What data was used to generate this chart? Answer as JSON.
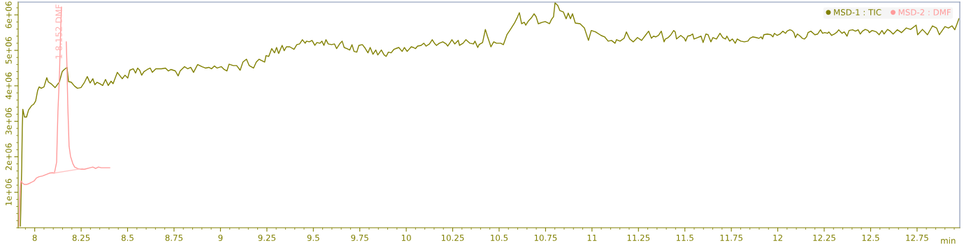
{
  "chart_data": {
    "type": "line",
    "xlabel": "min",
    "legend": "top right",
    "marker": "none",
    "line_style": "solid",
    "grid": false,
    "xlim": [
      7.911,
      12.98
    ],
    "ylim": [
      0,
      6360000.0
    ],
    "xticks": [
      8,
      8.25,
      8.5,
      8.75,
      9,
      9.25,
      9.5,
      9.75,
      10,
      10.25,
      10.5,
      10.75,
      11,
      11.25,
      11.5,
      11.75,
      12,
      12.25,
      12.5,
      12.75
    ],
    "yticks": [
      {
        "value": 1000000.0,
        "label": "1e+06"
      },
      {
        "value": 2000000.0,
        "label": "2e+06"
      },
      {
        "value": 3000000.0,
        "label": "3e+06"
      },
      {
        "value": 4000000.0,
        "label": "4e+06"
      },
      {
        "value": 5000000.0,
        "label": "5e+06"
      },
      {
        "value": 6000000.0,
        "label": "6e+06"
      }
    ],
    "annotations": [
      "1 8.152 DMF"
    ],
    "series": [
      {
        "name": "MSD-1 : TIC",
        "color": "#808000",
        "x": [
          7.923,
          7.93,
          7.933,
          7.936,
          7.945,
          7.956,
          7.967,
          7.983,
          7.994,
          8.005,
          8.016,
          8.024,
          8.035,
          8.05,
          8.065,
          8.073,
          8.088,
          8.11,
          8.133,
          8.148,
          8.159,
          8.174,
          8.182,
          8.197,
          8.215,
          8.23,
          8.249,
          8.268,
          8.283,
          8.298,
          8.313,
          8.324,
          8.336,
          8.351,
          8.366,
          8.381,
          8.396,
          8.411,
          8.422,
          8.445,
          8.471,
          8.486,
          8.501,
          8.512,
          8.531,
          8.543,
          8.554,
          8.565,
          8.576,
          8.588,
          8.606,
          8.622,
          8.633,
          8.652,
          8.682,
          8.704,
          8.719,
          8.734,
          8.757,
          8.772,
          8.783,
          8.806,
          8.824,
          8.84,
          8.855,
          8.877,
          8.9,
          8.919,
          8.937,
          8.952,
          8.967,
          8.982,
          9.005,
          9.02,
          9.035,
          9.046,
          9.069,
          9.087,
          9.106,
          9.121,
          9.14,
          9.155,
          9.178,
          9.193,
          9.208,
          9.223,
          9.238,
          9.245,
          9.26,
          9.276,
          9.291,
          9.302,
          9.313,
          9.332,
          9.343,
          9.355,
          9.373,
          9.396,
          9.411,
          9.426,
          9.441,
          9.456,
          9.463,
          9.478,
          9.493,
          9.508,
          9.519,
          9.535,
          9.546,
          9.557,
          9.568,
          9.58,
          9.598,
          9.614,
          9.625,
          9.644,
          9.655,
          9.666,
          9.681,
          9.696,
          9.708,
          9.719,
          9.734,
          9.745,
          9.764,
          9.779,
          9.794,
          9.806,
          9.821,
          9.836,
          9.847,
          9.866,
          9.881,
          9.892,
          9.904,
          9.919,
          9.934,
          9.949,
          9.96,
          9.978,
          9.99,
          10.005,
          10.027,
          10.039,
          10.05,
          10.061,
          10.08,
          10.095,
          10.107,
          10.125,
          10.14,
          10.152,
          10.163,
          10.178,
          10.197,
          10.215,
          10.223,
          10.234,
          10.246,
          10.261,
          10.28,
          10.287,
          10.306,
          10.321,
          10.343,
          10.362,
          10.37,
          10.385,
          10.392,
          10.411,
          10.426,
          10.437,
          10.456,
          10.471,
          10.486,
          10.508,
          10.523,
          10.542,
          10.561,
          10.583,
          10.598,
          10.609,
          10.621,
          10.636,
          10.643,
          10.658,
          10.673,
          10.688,
          10.699,
          10.711,
          10.733,
          10.748,
          10.771,
          10.782,
          10.793,
          10.801,
          10.816,
          10.827,
          10.846,
          10.861,
          10.872,
          10.884,
          10.895,
          10.91,
          10.936,
          10.959,
          10.981,
          10.996,
          11.019,
          11.049,
          11.068,
          11.087,
          11.105,
          11.124,
          11.132,
          11.151,
          11.173,
          11.185,
          11.203,
          11.222,
          11.234,
          11.245,
          11.267,
          11.29,
          11.305,
          11.32,
          11.331,
          11.343,
          11.358,
          11.373,
          11.388,
          11.395,
          11.41,
          11.425,
          11.44,
          11.448,
          11.455,
          11.478,
          11.497,
          11.504,
          11.515,
          11.53,
          11.542,
          11.549,
          11.568,
          11.587,
          11.598,
          11.613,
          11.625,
          11.64,
          11.651,
          11.67,
          11.689,
          11.704,
          11.719,
          11.726,
          11.741,
          11.756,
          11.771,
          11.782,
          11.801,
          11.82,
          11.839,
          11.85,
          11.865,
          11.884,
          11.899,
          11.91,
          11.918,
          11.925,
          11.944,
          11.963,
          11.974,
          11.982,
          11.997,
          12.012,
          12.027,
          12.042,
          12.05,
          12.065,
          12.076,
          12.087,
          12.095,
          12.106,
          12.121,
          12.132,
          12.144,
          12.155,
          12.163,
          12.178,
          12.2,
          12.215,
          12.23,
          12.241,
          12.253,
          12.268,
          12.275,
          12.29,
          12.305,
          12.32,
          12.328,
          12.346,
          12.358,
          12.373,
          12.384,
          12.403,
          12.418,
          12.433,
          12.444,
          12.456,
          12.471,
          12.486,
          12.493,
          12.508,
          12.531,
          12.546,
          12.561,
          12.572,
          12.591,
          12.606,
          12.621,
          12.644,
          12.666,
          12.692,
          12.715,
          12.745,
          12.753,
          12.779,
          12.806,
          12.833,
          12.855,
          12.87,
          12.9,
          12.919,
          12.938,
          12.953,
          12.964,
          12.975
        ],
        "values": [
          50000.0,
          1670000.0,
          2790000.0,
          3340000.0,
          3120000.0,
          3120000.0,
          3320000.0,
          3440000.0,
          3480000.0,
          3570000.0,
          3870000.0,
          3970000.0,
          3930000.0,
          3970000.0,
          4230000.0,
          4110000.0,
          4060000.0,
          3950000.0,
          4110000.0,
          4400000.0,
          4460000.0,
          4520000.0,
          4120000.0,
          4100000.0,
          3990000.0,
          3930000.0,
          3950000.0,
          4100000.0,
          4260000.0,
          4080000.0,
          4200000.0,
          4030000.0,
          4100000.0,
          4060000.0,
          4010000.0,
          4180000.0,
          4010000.0,
          4130000.0,
          4060000.0,
          4380000.0,
          4200000.0,
          4300000.0,
          4220000.0,
          4440000.0,
          4480000.0,
          4360000.0,
          4500000.0,
          4440000.0,
          4300000.0,
          4400000.0,
          4460000.0,
          4500000.0,
          4380000.0,
          4480000.0,
          4480000.0,
          4500000.0,
          4420000.0,
          4460000.0,
          4420000.0,
          4280000.0,
          4420000.0,
          4540000.0,
          4480000.0,
          4520000.0,
          4380000.0,
          4600000.0,
          4540000.0,
          4500000.0,
          4520000.0,
          4480000.0,
          4560000.0,
          4500000.0,
          4540000.0,
          4460000.0,
          4420000.0,
          4610000.0,
          4570000.0,
          4570000.0,
          4440000.0,
          4670000.0,
          4750000.0,
          4570000.0,
          4500000.0,
          4670000.0,
          4750000.0,
          4710000.0,
          4670000.0,
          4850000.0,
          4830000.0,
          5050000.0,
          4930000.0,
          5080000.0,
          4910000.0,
          5140000.0,
          4990000.0,
          5100000.0,
          5100000.0,
          5030000.0,
          5160000.0,
          5180000.0,
          5300000.0,
          5200000.0,
          5260000.0,
          5240000.0,
          5280000.0,
          5140000.0,
          5220000.0,
          5200000.0,
          5260000.0,
          5140000.0,
          5300000.0,
          5180000.0,
          5160000.0,
          5180000.0,
          5050000.0,
          5200000.0,
          5260000.0,
          5080000.0,
          5050000.0,
          5010000.0,
          5160000.0,
          4970000.0,
          4950000.0,
          5140000.0,
          5160000.0,
          5060000.0,
          4930000.0,
          5080000.0,
          4890000.0,
          5010000.0,
          4870000.0,
          5010000.0,
          4870000.0,
          4830000.0,
          4950000.0,
          4930000.0,
          5030000.0,
          5060000.0,
          5080000.0,
          4970000.0,
          5080000.0,
          4970000.0,
          5100000.0,
          5080000.0,
          5050000.0,
          5120000.0,
          5140000.0,
          5200000.0,
          5120000.0,
          5180000.0,
          5300000.0,
          5200000.0,
          5140000.0,
          5200000.0,
          5240000.0,
          5180000.0,
          5120000.0,
          5200000.0,
          5300000.0,
          5180000.0,
          5280000.0,
          5140000.0,
          5200000.0,
          5300000.0,
          5200000.0,
          5180000.0,
          5260000.0,
          5080000.0,
          5160000.0,
          5220000.0,
          5590000.0,
          5400000.0,
          5100000.0,
          5240000.0,
          5200000.0,
          5200000.0,
          5160000.0,
          5440000.0,
          5590000.0,
          5770000.0,
          5930000.0,
          6060000.0,
          5750000.0,
          5790000.0,
          5710000.0,
          5830000.0,
          5910000.0,
          6030000.0,
          5950000.0,
          5750000.0,
          5790000.0,
          5810000.0,
          5750000.0,
          5870000.0,
          5950000.0,
          6340000.0,
          6260000.0,
          6120000.0,
          6080000.0,
          5890000.0,
          6050000.0,
          5890000.0,
          6030000.0,
          5770000.0,
          5750000.0,
          5630000.0,
          5280000.0,
          5560000.0,
          5520000.0,
          5420000.0,
          5380000.0,
          5260000.0,
          5280000.0,
          5200000.0,
          5300000.0,
          5260000.0,
          5340000.0,
          5520000.0,
          5320000.0,
          5240000.0,
          5300000.0,
          5360000.0,
          5280000.0,
          5440000.0,
          5540000.0,
          5340000.0,
          5400000.0,
          5380000.0,
          5420000.0,
          5540000.0,
          5240000.0,
          5320000.0,
          5360000.0,
          5440000.0,
          5560000.0,
          5520000.0,
          5320000.0,
          5420000.0,
          5340000.0,
          5260000.0,
          5400000.0,
          5420000.0,
          5460000.0,
          5320000.0,
          5360000.0,
          5400000.0,
          5220000.0,
          5460000.0,
          5440000.0,
          5240000.0,
          5360000.0,
          5320000.0,
          5480000.0,
          5360000.0,
          5320000.0,
          5400000.0,
          5260000.0,
          5320000.0,
          5200000.0,
          5320000.0,
          5260000.0,
          5240000.0,
          5260000.0,
          5340000.0,
          5380000.0,
          5360000.0,
          5340000.0,
          5380000.0,
          5320000.0,
          5440000.0,
          5460000.0,
          5440000.0,
          5380000.0,
          5480000.0,
          5420000.0,
          5460000.0,
          5540000.0,
          5480000.0,
          5540000.0,
          5580000.0,
          5560000.0,
          5500000.0,
          5360000.0,
          5460000.0,
          5400000.0,
          5340000.0,
          5320000.0,
          5380000.0,
          5500000.0,
          5540000.0,
          5440000.0,
          5460000.0,
          5580000.0,
          5480000.0,
          5500000.0,
          5480000.0,
          5520000.0,
          5420000.0,
          5460000.0,
          5520000.0,
          5580000.0,
          5480000.0,
          5520000.0,
          5400000.0,
          5560000.0,
          5580000.0,
          5540000.0,
          5580000.0,
          5460000.0,
          5540000.0,
          5590000.0,
          5560000.0,
          5500000.0,
          5560000.0,
          5520000.0,
          5440000.0,
          5560000.0,
          5460000.0,
          5590000.0,
          5540000.0,
          5460000.0,
          5580000.0,
          5500000.0,
          5630000.0,
          5590000.0,
          5710000.0,
          5440000.0,
          5590000.0,
          5440000.0,
          5690000.0,
          5630000.0,
          5440000.0,
          5670000.0,
          5630000.0,
          5690000.0,
          5580000.0,
          5730000.0,
          5890000.0
        ]
      },
      {
        "name": "MSD-2 : DMF",
        "color": "#ff9a9a",
        "x": [
          7.914,
          7.918,
          7.922,
          7.926,
          7.933,
          7.945,
          7.956,
          7.967,
          7.983,
          7.997,
          8.009,
          8.024,
          8.042,
          8.061,
          8.08,
          8.095,
          8.106,
          8.118,
          8.121,
          8.125,
          8.133,
          8.136,
          8.14,
          8.144,
          8.148,
          8.167,
          8.17,
          8.174,
          8.178,
          8.185,
          8.193,
          8.205,
          8.215,
          8.23,
          8.249,
          8.268,
          8.298,
          8.313,
          8.328,
          8.343,
          8.358,
          8.374,
          8.404
        ],
        "values": [
          50000.0,
          540000.0,
          1120000.0,
          1320000.0,
          1260000.0,
          1220000.0,
          1220000.0,
          1240000.0,
          1280000.0,
          1320000.0,
          1400000.0,
          1440000.0,
          1460000.0,
          1500000.0,
          1540000.0,
          1550000.0,
          1540000.0,
          1850000.0,
          2500000.0,
          3280000.0,
          4260000.0,
          4850000.0,
          5630000.0,
          6220000.0,
          null,
          null,
          5240000.0,
          4460000.0,
          3470000.0,
          2300000.0,
          2010000.0,
          1810000.0,
          1710000.0,
          1670000.0,
          1650000.0,
          1650000.0,
          1690000.0,
          1710000.0,
          1670000.0,
          1710000.0,
          1690000.0,
          1690000.0,
          1690000.0
        ]
      },
      {
        "color": "#ffc4c4",
        "x": [
          8.106,
          8.257
        ],
        "values": [
          1540000.0,
          1670000.0
        ]
      }
    ]
  }
}
